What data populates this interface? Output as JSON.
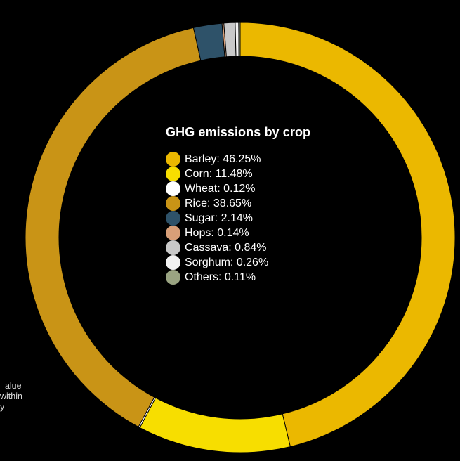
{
  "chart_data": {
    "type": "pie",
    "title": "GHG emissions by crop",
    "donut": true,
    "legend_position": "center",
    "unit": "%",
    "categories": [
      "Barley",
      "Corn",
      "Wheat",
      "Rice",
      "Sugar",
      "Hops",
      "Cassava",
      "Sorghum",
      "Others"
    ],
    "values": [
      46.25,
      11.48,
      0.12,
      38.65,
      2.14,
      0.14,
      0.84,
      0.26,
      0.11
    ],
    "colors": [
      "#ebb800",
      "#f7de00",
      "#ffffff",
      "#c99416",
      "#2e5269",
      "#d89f78",
      "#c9c9c9",
      "#f2f2f2",
      "#9aa482"
    ],
    "order": [
      "Barley",
      "Corn",
      "Wheat",
      "Rice",
      "Sugar",
      "Hops",
      "Cassava",
      "Sorghum",
      "Others"
    ]
  },
  "side_note": {
    "lines": [
      "alue",
      "within",
      "y"
    ]
  }
}
